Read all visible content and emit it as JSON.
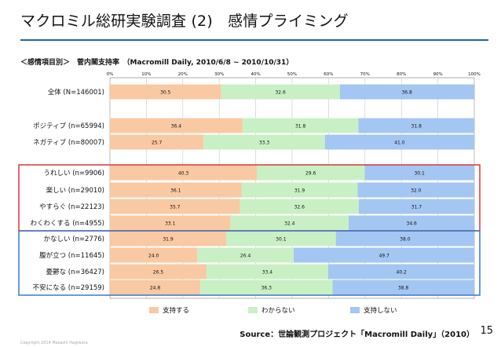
{
  "slide": {
    "title": "マクロミル総研実験調査 (2)　感情プライミング",
    "page_number": "15",
    "source": "Source：世論観測プロジェクト「Macromill Daily」（2010）",
    "copyright": "Copyright 2014 Masashi Hagiwara"
  },
  "colors": {
    "support": "#f9c9a3",
    "unknown": "#c9f0c4",
    "not_support": "#a4c6f2",
    "red_box": "#e0343c",
    "blue_box": "#3a78c9",
    "title_rule": "#1f64b4"
  },
  "chart_data": {
    "type": "bar",
    "stacked": true,
    "orientation": "horizontal",
    "title": "＜感情項目別＞　菅内閣支持率　（Macromill Daily, 2010/6/8 ~ 2010/10/31）",
    "xlim": [
      0,
      100
    ],
    "x_ticks": [
      "0%",
      "10%",
      "20%",
      "30%",
      "40%",
      "50%",
      "60%",
      "70%",
      "80%",
      "90%",
      "100%"
    ],
    "legend_position": "bottom",
    "series": [
      {
        "name": "支持する",
        "values": [
          30.5,
          36.4,
          25.7,
          40.3,
          36.1,
          35.7,
          33.1,
          31.9,
          24.0,
          26.5,
          24.8
        ]
      },
      {
        "name": "わからない",
        "values": [
          32.6,
          31.8,
          33.3,
          29.6,
          31.9,
          32.6,
          32.4,
          30.1,
          26.4,
          33.4,
          36.3
        ]
      },
      {
        "name": "支持しない",
        "values": [
          36.8,
          31.8,
          41.0,
          30.1,
          32.0,
          31.7,
          34.6,
          38.0,
          49.7,
          40.2,
          38.8
        ]
      }
    ],
    "categories": [
      "全体 (N=146001)",
      "ポジティブ (n=65994)",
      "ネガティブ (n=80007)",
      "うれしい (n=9906)",
      "楽しい (n=29010)",
      "やすらぐ (n=22123)",
      "わくわくする (n=4955)",
      "かなしい (n=2776)",
      "腹が立つ (n=11645)",
      "憂鬱な (n=36427)",
      "不安になる (n=29159)"
    ]
  }
}
